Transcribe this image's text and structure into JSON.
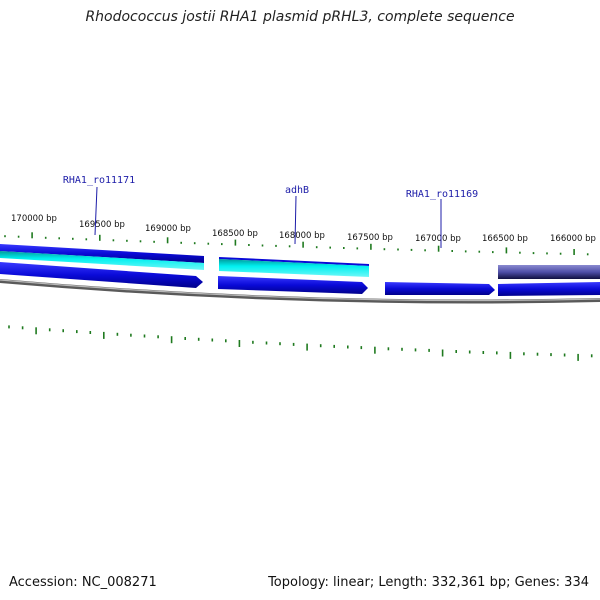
{
  "title": "Rhodococcus jostii RHA1 plasmid pRHL3, complete sequence",
  "footer": {
    "accession": "Accession: NC_008271",
    "summary": "Topology: linear; Length: 332,361 bp; Genes: 334"
  },
  "scale": {
    "labels": [
      "170000 bp",
      "169500 bp",
      "169000 bp",
      "168500 bp",
      "168000 bp",
      "167500 bp",
      "167000 bp",
      "166500 bp",
      "166000 bp"
    ]
  },
  "genes": [
    {
      "name": "RHA1_ro11171"
    },
    {
      "name": "adhB"
    },
    {
      "name": "RHA1_ro11169"
    }
  ],
  "colors": {
    "tick": "#1f7a1f",
    "gene": "#0a0ad8",
    "cds_light": "#00e5e5",
    "backbone": "#888888",
    "label": "#1c1ca8"
  }
}
